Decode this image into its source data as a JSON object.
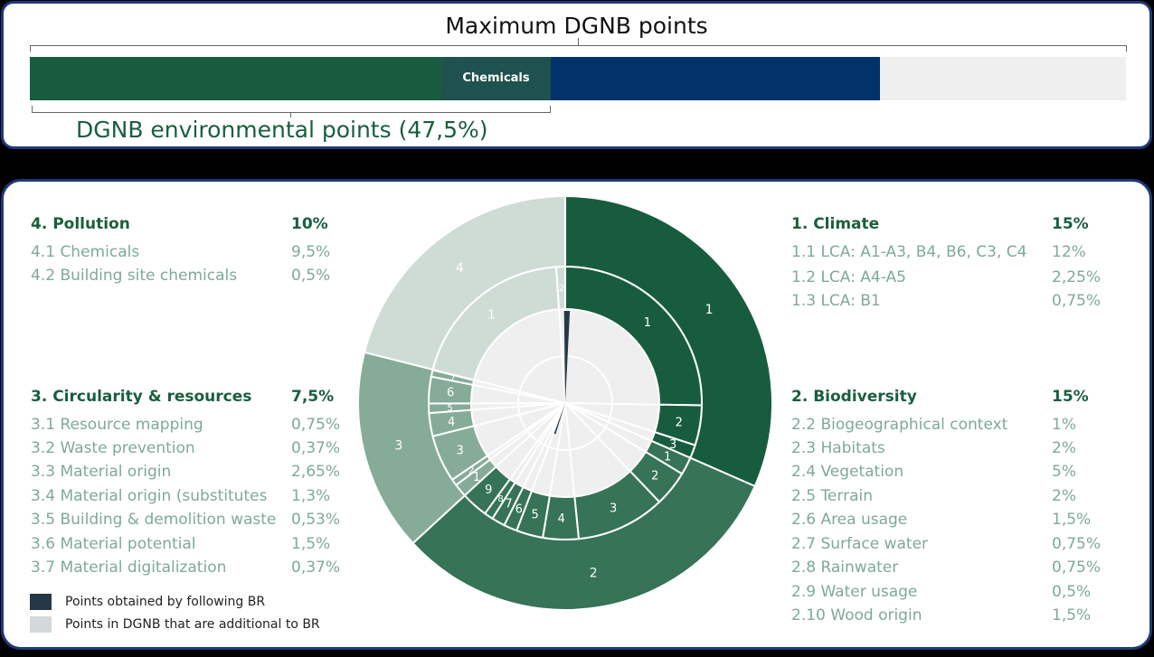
{
  "top": {
    "title": "Maximum DGNB points",
    "chemicals_label": "Chemicals",
    "env_label": "DGNB environmental points (47,5%)"
  },
  "colors": {
    "dark_green": "#185c3f",
    "mid_green": "#367357",
    "sage": "#86ab99",
    "light_sage": "#cfdcd6",
    "navy": "#03326b",
    "light_gray": "#efefef",
    "obtained_br": "#263845"
  },
  "categories": {
    "pollution": {
      "title": "4. Pollution",
      "pct": "10%",
      "items": [
        {
          "label": "4.1 Chemicals",
          "pct": "9,5%"
        },
        {
          "label": "4.2 Building site chemicals",
          "pct": "0,5%"
        }
      ]
    },
    "circularity": {
      "title": "3. Circularity & resources",
      "pct": "7,5%",
      "items": [
        {
          "label": "3.1 Resource mapping",
          "pct": "0,75%"
        },
        {
          "label": "3.2 Waste prevention",
          "pct": "0,37%"
        },
        {
          "label": "3.3 Material origin",
          "pct": "2,65%"
        },
        {
          "label": "3.4 Material origin (substitutes",
          "pct": "1,3%"
        },
        {
          "label": "3.5 Building & demolition waste",
          "pct": "0,53%"
        },
        {
          "label": "3.6 Material potential",
          "pct": "1,5%"
        },
        {
          "label": "3.7 Material digitalization",
          "pct": "0,37%"
        }
      ]
    },
    "climate": {
      "title": "1. Climate",
      "pct": "15%",
      "items": [
        {
          "label": "1.1 LCA: A1-A3, B4, B6, C3, C4",
          "pct": "12%"
        },
        {
          "label": "1.2 LCA: A4-A5",
          "pct": "2,25%"
        },
        {
          "label": "1.3 LCA: B1",
          "pct": "0,75%"
        }
      ]
    },
    "biodiversity": {
      "title": "2. Biodiversity",
      "pct": "15%",
      "items": [
        {
          "label": "2.2 Biogeographical context",
          "pct": "1%"
        },
        {
          "label": "2.3 Habitats",
          "pct": "2%"
        },
        {
          "label": "2.4 Vegetation",
          "pct": "5%"
        },
        {
          "label": "2.5 Terrain",
          "pct": "2%"
        },
        {
          "label": "2.6 Area usage",
          "pct": "1,5%"
        },
        {
          "label": "2.7 Surface water",
          "pct": "0,75%"
        },
        {
          "label": "2.8 Rainwater",
          "pct": "0,75%"
        },
        {
          "label": "2.9 Water usage",
          "pct": "0,5%"
        },
        {
          "label": "2.10 Wood origin",
          "pct": "1,5%"
        }
      ]
    }
  },
  "legend": [
    {
      "label": "Points obtained by following BR",
      "color": "#263845"
    },
    {
      "label": "Points in DGNB that are additional to BR",
      "color": "#d3d8db"
    }
  ],
  "chart_data": {
    "type": "sunburst",
    "outer_ring": [
      {
        "label": "1",
        "value": 15
      },
      {
        "label": "2",
        "value": 15
      },
      {
        "label": "3",
        "value": 7.5
      },
      {
        "label": "4",
        "value": 10
      }
    ],
    "middle_ring": [
      {
        "group": "1",
        "labels": [
          "1",
          "2",
          "3"
        ],
        "values": [
          12,
          2.25,
          0.75
        ]
      },
      {
        "group": "2",
        "labels": [
          "1",
          "2",
          "3",
          "4",
          "5",
          "6",
          "7",
          "8",
          "9"
        ],
        "values": [
          1,
          2,
          5,
          2,
          1.5,
          0.75,
          0.75,
          0.5,
          1.5
        ]
      },
      {
        "group": "3",
        "labels": [
          "1",
          "2",
          "3",
          "4",
          "5",
          "6",
          "7"
        ],
        "values": [
          0.75,
          0.37,
          2.65,
          1.3,
          0.53,
          1.5,
          0.37
        ]
      },
      {
        "group": "4",
        "labels": [
          "1",
          "2"
        ],
        "values": [
          9.5,
          0.5
        ]
      }
    ]
  }
}
